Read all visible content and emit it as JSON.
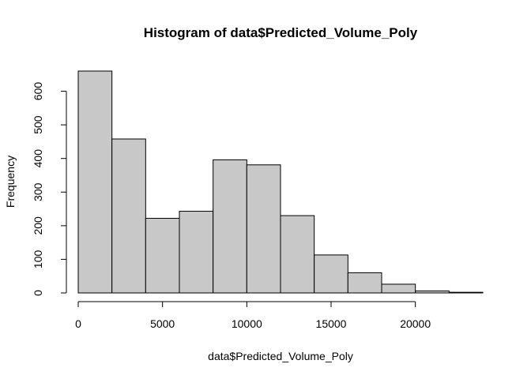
{
  "chart_data": {
    "type": "bar",
    "title": "Histogram of data$Predicted_Volume_Poly",
    "xlabel": "data$Predicted_Volume_Poly",
    "ylabel": "Frequency",
    "bins": [
      {
        "from": 0,
        "to": 2000,
        "count": 660
      },
      {
        "from": 2000,
        "to": 4000,
        "count": 458
      },
      {
        "from": 4000,
        "to": 6000,
        "count": 222
      },
      {
        "from": 6000,
        "to": 8000,
        "count": 243
      },
      {
        "from": 8000,
        "to": 10000,
        "count": 396
      },
      {
        "from": 10000,
        "to": 12000,
        "count": 381
      },
      {
        "from": 12000,
        "to": 14000,
        "count": 230
      },
      {
        "from": 14000,
        "to": 16000,
        "count": 113
      },
      {
        "from": 16000,
        "to": 18000,
        "count": 60
      },
      {
        "from": 18000,
        "to": 20000,
        "count": 26
      },
      {
        "from": 20000,
        "to": 22000,
        "count": 6
      },
      {
        "from": 22000,
        "to": 24000,
        "count": 2
      }
    ],
    "xlim": [
      0,
      24000
    ],
    "ylim": [
      0,
      660
    ],
    "x_ticks": [
      0,
      5000,
      10000,
      15000,
      20000
    ],
    "y_ticks": [
      0,
      100,
      200,
      300,
      400,
      500,
      600
    ],
    "bar_color": "#c8c8c8",
    "grid": false,
    "legend": "none"
  }
}
